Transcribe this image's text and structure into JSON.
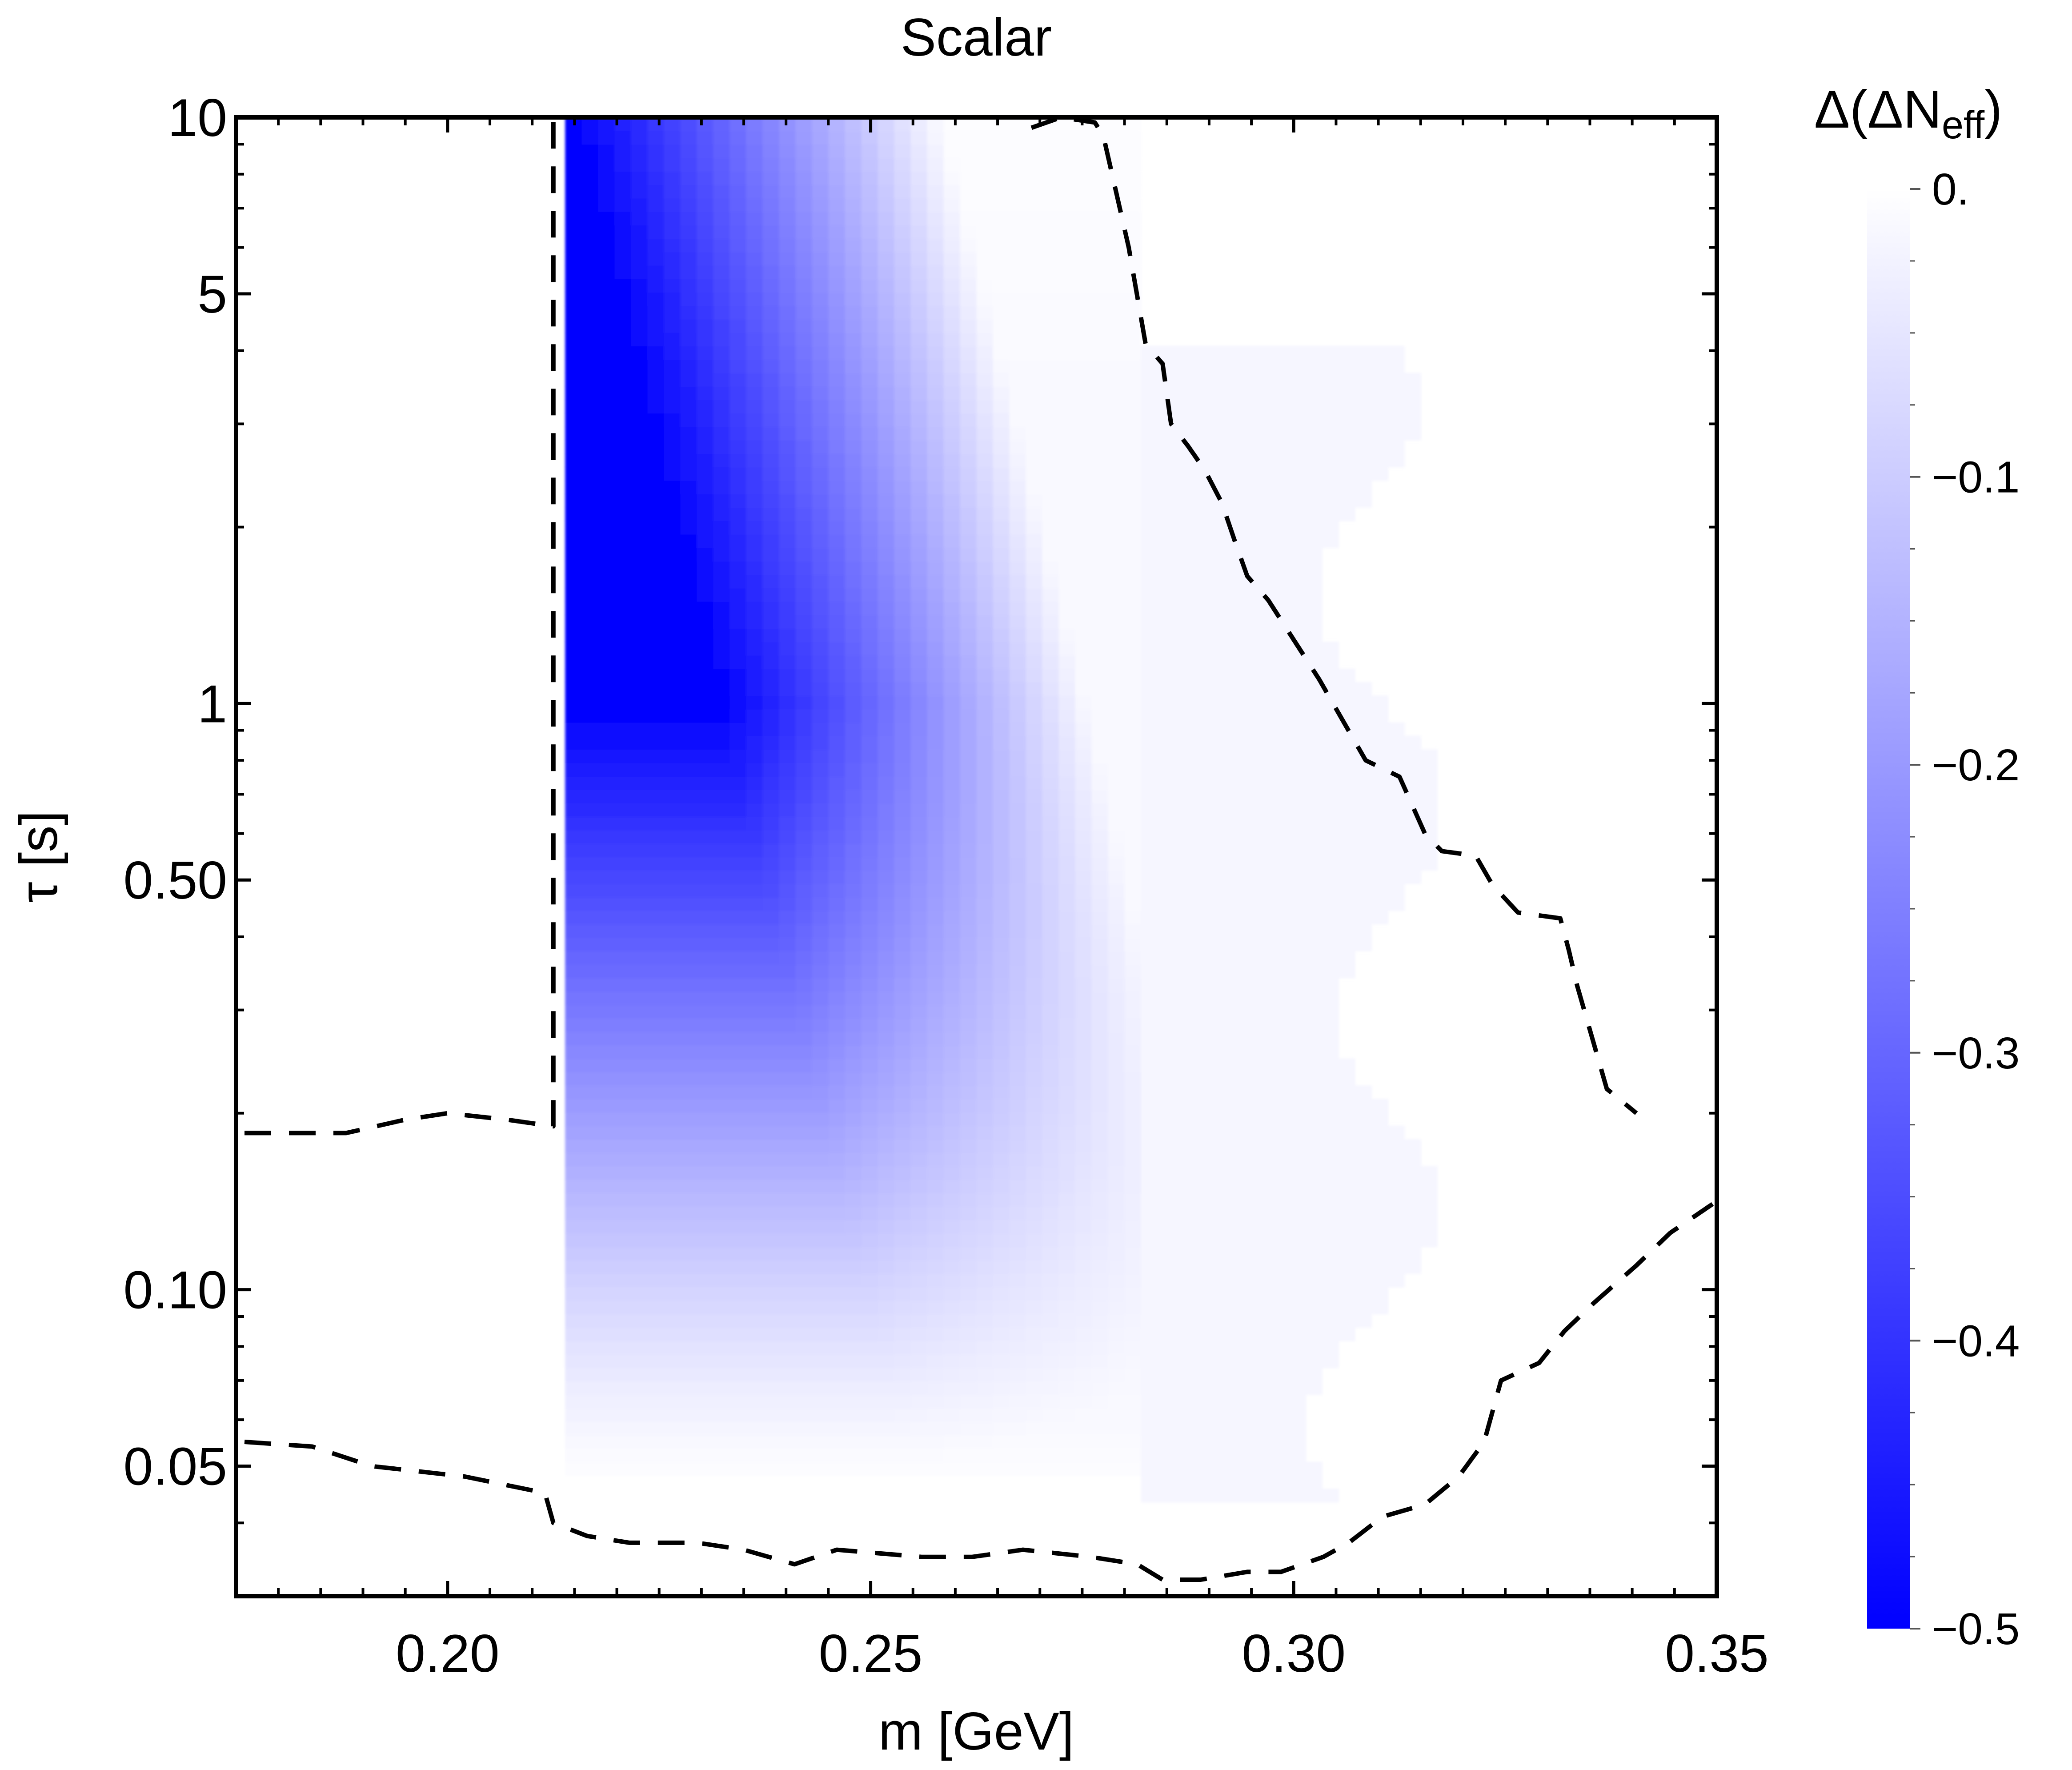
{
  "chart_data": {
    "type": "heatmap",
    "title": "Scalar",
    "xlabel": "m [GeV]",
    "ylabel": "τ [s]",
    "xlim": [
      0.175,
      0.35
    ],
    "ylim": [
      0.03,
      10
    ],
    "y_scale": "log",
    "x_ticks": [
      {
        "value": 0.2,
        "label": "0.20"
      },
      {
        "value": 0.25,
        "label": "0.25"
      },
      {
        "value": 0.3,
        "label": "0.30"
      },
      {
        "value": 0.35,
        "label": "0.35"
      }
    ],
    "y_ticks": [
      {
        "value": 10,
        "label": "10"
      },
      {
        "value": 5,
        "label": "5"
      },
      {
        "value": 1,
        "label": "1"
      },
      {
        "value": 0.5,
        "label": "0.50"
      },
      {
        "value": 0.1,
        "label": "0.10"
      },
      {
        "value": 0.05,
        "label": "0.05"
      }
    ],
    "colorbar": {
      "label_main": "Δ(ΔN",
      "label_sub": "eff",
      "label_close": ")",
      "range": [
        -0.5,
        0
      ],
      "ticks": [
        {
          "value": 0,
          "label": "0."
        },
        {
          "value": -0.1,
          "label": "−0.1"
        },
        {
          "value": -0.2,
          "label": "−0.2"
        },
        {
          "value": -0.3,
          "label": "−0.3"
        },
        {
          "value": -0.4,
          "label": "−0.4"
        },
        {
          "value": -0.5,
          "label": "−0.5"
        }
      ],
      "colors": [
        "#ffffff",
        "#0000ff"
      ]
    },
    "shaded_region": {
      "x_range": [
        0.2135,
        0.2825
      ],
      "tau_range": [
        0.045,
        10
      ],
      "min_value": -0.5,
      "faint_extension_x": [
        0.2825,
        0.3125
      ]
    },
    "contours": [
      {
        "style": "dashed",
        "points": [
          [
            0.176,
            0.185
          ],
          [
            0.188,
            0.185
          ],
          [
            0.195,
            0.195
          ],
          [
            0.2,
            0.2
          ],
          [
            0.207,
            0.195
          ],
          [
            0.2125,
            0.19
          ],
          [
            0.2125,
            10
          ]
        ]
      },
      {
        "style": "dashed",
        "points": [
          [
            0.269,
            9.6
          ],
          [
            0.2725,
            10
          ],
          [
            0.2765,
            9.8
          ],
          [
            0.2775,
            9.3
          ],
          [
            0.2805,
            6.0
          ],
          [
            0.2825,
            4.1
          ],
          [
            0.2845,
            3.8
          ],
          [
            0.2855,
            3.0
          ],
          [
            0.2875,
            2.75
          ],
          [
            0.2895,
            2.5
          ],
          [
            0.2915,
            2.2
          ],
          [
            0.293,
            1.9
          ],
          [
            0.2945,
            1.65
          ],
          [
            0.297,
            1.5
          ],
          [
            0.303,
            1.1
          ],
          [
            0.3085,
            0.8
          ],
          [
            0.3125,
            0.75
          ],
          [
            0.3155,
            0.6
          ],
          [
            0.3175,
            0.56
          ],
          [
            0.3215,
            0.55
          ],
          [
            0.3235,
            0.49
          ],
          [
            0.3265,
            0.44
          ],
          [
            0.3315,
            0.43
          ],
          [
            0.3325,
            0.38
          ],
          [
            0.3335,
            0.33
          ],
          [
            0.337,
            0.22
          ],
          [
            0.3405,
            0.2
          ]
        ]
      },
      {
        "style": "dashed",
        "points": [
          [
            0.176,
            0.055
          ],
          [
            0.184,
            0.054
          ],
          [
            0.191,
            0.05
          ],
          [
            0.202,
            0.048
          ],
          [
            0.2115,
            0.045
          ],
          [
            0.2125,
            0.04
          ],
          [
            0.2165,
            0.038
          ],
          [
            0.2215,
            0.037
          ],
          [
            0.2255,
            0.037
          ],
          [
            0.2295,
            0.037
          ],
          [
            0.235,
            0.036
          ],
          [
            0.241,
            0.034
          ],
          [
            0.246,
            0.036
          ],
          [
            0.256,
            0.035
          ],
          [
            0.262,
            0.035
          ],
          [
            0.268,
            0.036
          ],
          [
            0.276,
            0.035
          ],
          [
            0.2815,
            0.034
          ],
          [
            0.2845,
            0.032
          ],
          [
            0.289,
            0.032
          ],
          [
            0.2945,
            0.033
          ],
          [
            0.2985,
            0.033
          ],
          [
            0.3035,
            0.035
          ],
          [
            0.3065,
            0.037
          ],
          [
            0.3105,
            0.041
          ],
          [
            0.3155,
            0.043
          ],
          [
            0.3195,
            0.048
          ],
          [
            0.3225,
            0.055
          ],
          [
            0.3245,
            0.07
          ],
          [
            0.329,
            0.075
          ],
          [
            0.332,
            0.085
          ],
          [
            0.3355,
            0.095
          ],
          [
            0.3405,
            0.11
          ],
          [
            0.3445,
            0.125
          ],
          [
            0.3495,
            0.14
          ]
        ]
      }
    ]
  }
}
